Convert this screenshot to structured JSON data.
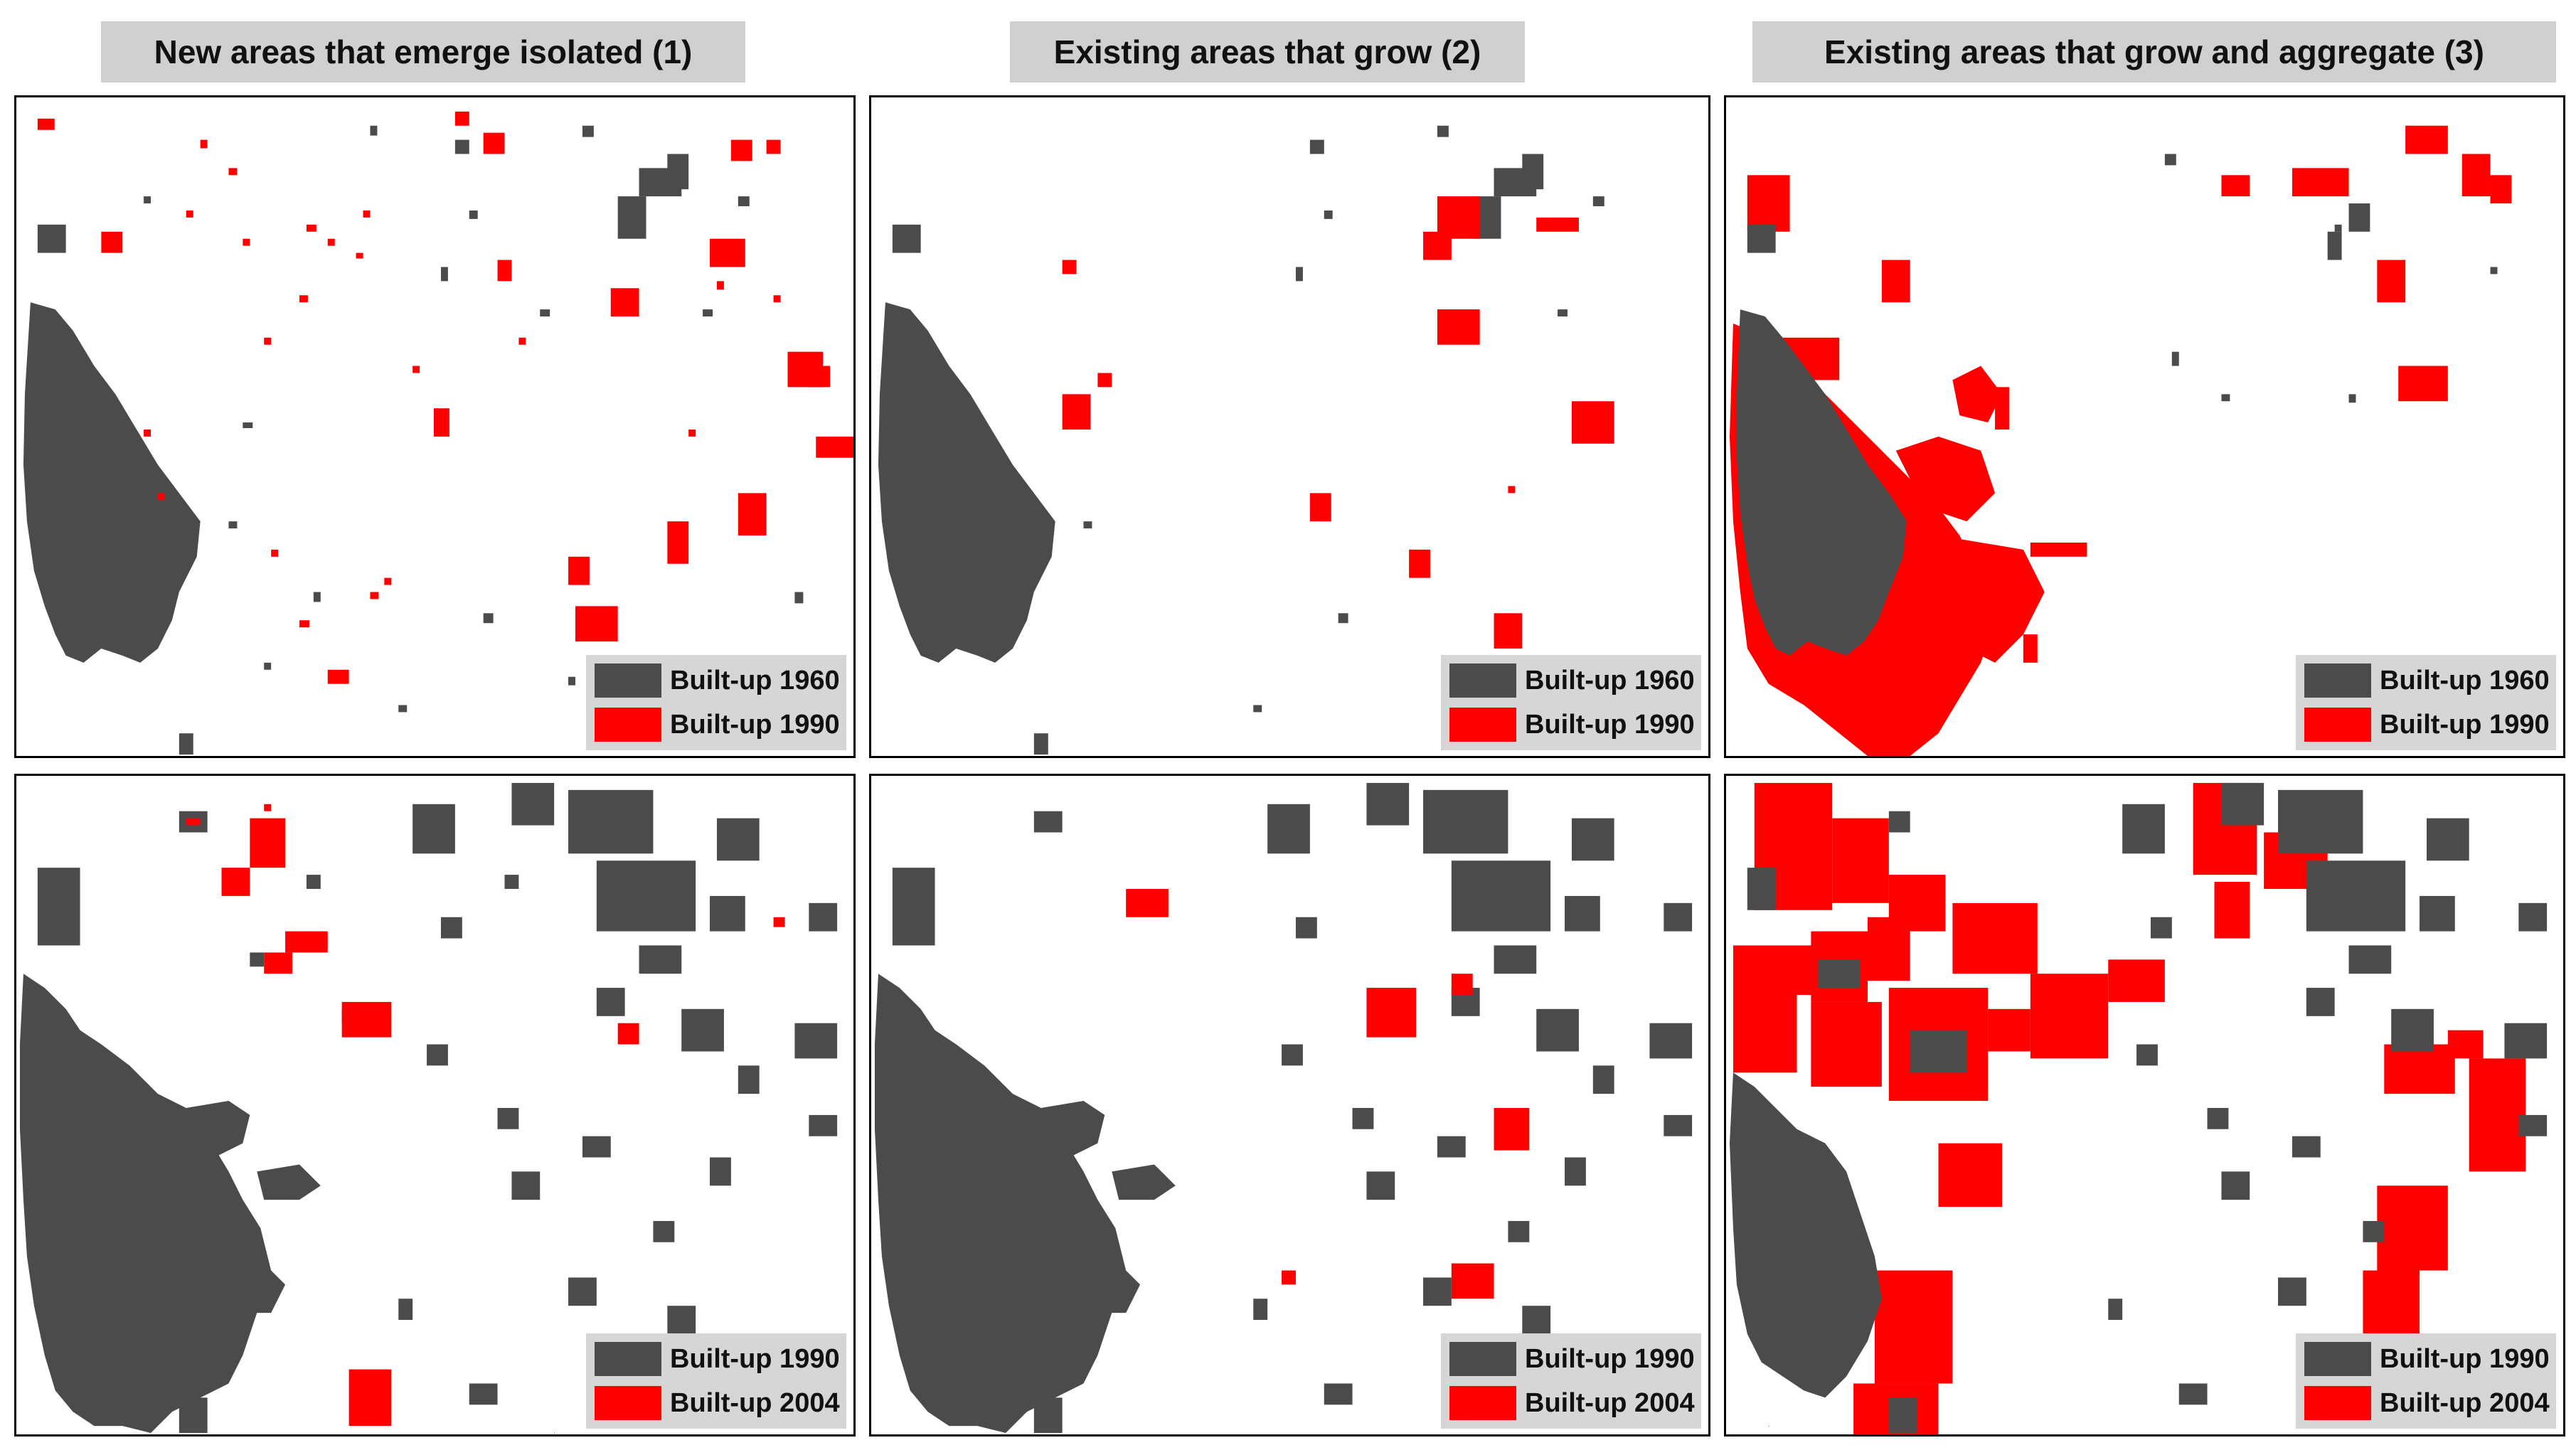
{
  "columns": [
    {
      "title": "New areas that emerge isolated (1)"
    },
    {
      "title": "Existing areas that grow (2)"
    },
    {
      "title": "Existing areas that grow and aggregate (3)"
    }
  ],
  "rows": [
    {
      "legend": {
        "old_label": "Built-up 1960",
        "new_label": "Built-up 1990"
      }
    },
    {
      "legend": {
        "old_label": "Built-up 1990",
        "new_label": "Built-up 2004"
      }
    }
  ],
  "colors": {
    "old_builtup": "#4b4b4b",
    "new_builtup": "#ff0000",
    "legend_bg": "#d6d6d6",
    "title_bg": "#d0d0d0"
  }
}
